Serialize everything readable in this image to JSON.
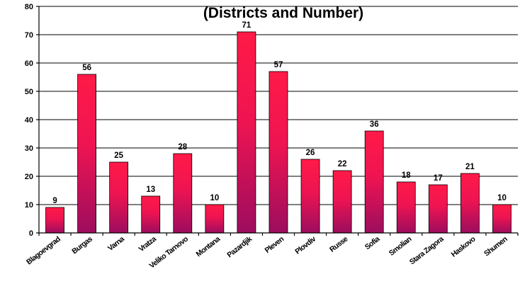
{
  "chart_data": {
    "type": "bar",
    "title": "(Districts and Number)",
    "xlabel": "",
    "ylabel": "",
    "ylim": [
      0,
      80
    ],
    "yticks": [
      0,
      10,
      20,
      30,
      40,
      50,
      60,
      70,
      80
    ],
    "grid": true,
    "legend": "none",
    "categories": [
      "Blagoevgrad",
      "Burgas",
      "Varna",
      "Vratza",
      "Veliko Tarnovo",
      "Montana",
      "Pazardjik",
      "Pleven",
      "Plovdiv",
      "Russe",
      "Sofia",
      "Smolian",
      "Stara Zagora",
      "Haskovo",
      "Shumen"
    ],
    "values": [
      9,
      56,
      25,
      13,
      28,
      10,
      71,
      57,
      26,
      22,
      36,
      18,
      17,
      21,
      10
    ],
    "colors": {
      "bar_top": "#ff1a47",
      "bar_bottom": "#9c0d5e",
      "grid": "#000000"
    }
  }
}
